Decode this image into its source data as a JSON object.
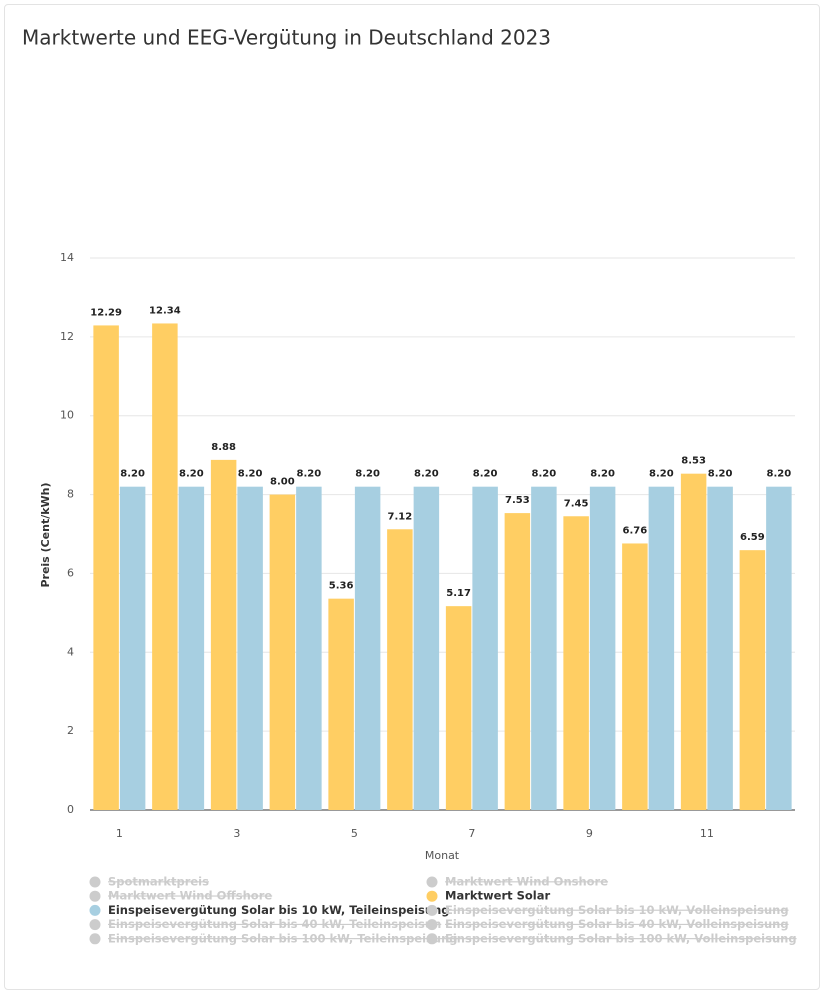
{
  "chart_data": {
    "type": "bar",
    "title": "Marktwerte und EEG-Vergütung in Deutschland 2023",
    "x_label": "Monat",
    "y_label": "Preis (Cent/kWh)",
    "categories": [
      1,
      null,
      3,
      null,
      5,
      null,
      7,
      null,
      9,
      null,
      11,
      null
    ],
    "ylim": [
      0,
      14
    ],
    "yticks": [
      0,
      2,
      4,
      6,
      8,
      10,
      12,
      14
    ],
    "grid": true,
    "series": [
      {
        "name": "Spotmarktpreis",
        "visible": false
      },
      {
        "name": "Marktwert Wind Onshore",
        "visible": false
      },
      {
        "name": "Marktwert Wind Offshore",
        "visible": false
      },
      {
        "name": "Marktwert Solar",
        "visible": true,
        "color": "#ffce63",
        "values": [
          12.29,
          12.34,
          8.88,
          8.0,
          5.36,
          7.12,
          5.17,
          7.53,
          7.45,
          6.76,
          8.53,
          6.59
        ],
        "value_labels": [
          "12.29",
          "12.34",
          "8.88",
          "8.00",
          "5.36",
          "7.12",
          "5.17",
          "7.53",
          "7.45",
          "6.76",
          "8.53",
          "6.59"
        ]
      },
      {
        "name": "Einspeisevergütung Solar bis 10 kW, Teileinspeisung",
        "visible": true,
        "color": "#a7cfe1",
        "values": [
          8.2,
          8.2,
          8.2,
          8.2,
          8.2,
          8.2,
          8.2,
          8.2,
          8.2,
          8.2,
          8.2,
          8.2
        ],
        "value_labels": [
          "8.20",
          "8.20",
          "8.20",
          "8.20",
          "8.20",
          "8.20",
          "8.20",
          "8.20",
          "8.20",
          "8.20",
          "8.20",
          "8.20"
        ]
      },
      {
        "name": "Einspeisevergütung Solar bis 10 kW, Volleinspeisung",
        "visible": false
      },
      {
        "name": "Einspeisevergütung Solar bis 40 kW, Teileinspeisun",
        "visible": false
      },
      {
        "name": "Einspeisevergütung Solar bis 40 kW, Volleinspeisung",
        "visible": false
      },
      {
        "name": "Einspeisevergütung Solar bis 100 kW, Teileinspeisung",
        "visible": false
      },
      {
        "name": "Einspeisevergütung Solar bis 100 kW, Volleinspeisung",
        "visible": false
      }
    ]
  }
}
